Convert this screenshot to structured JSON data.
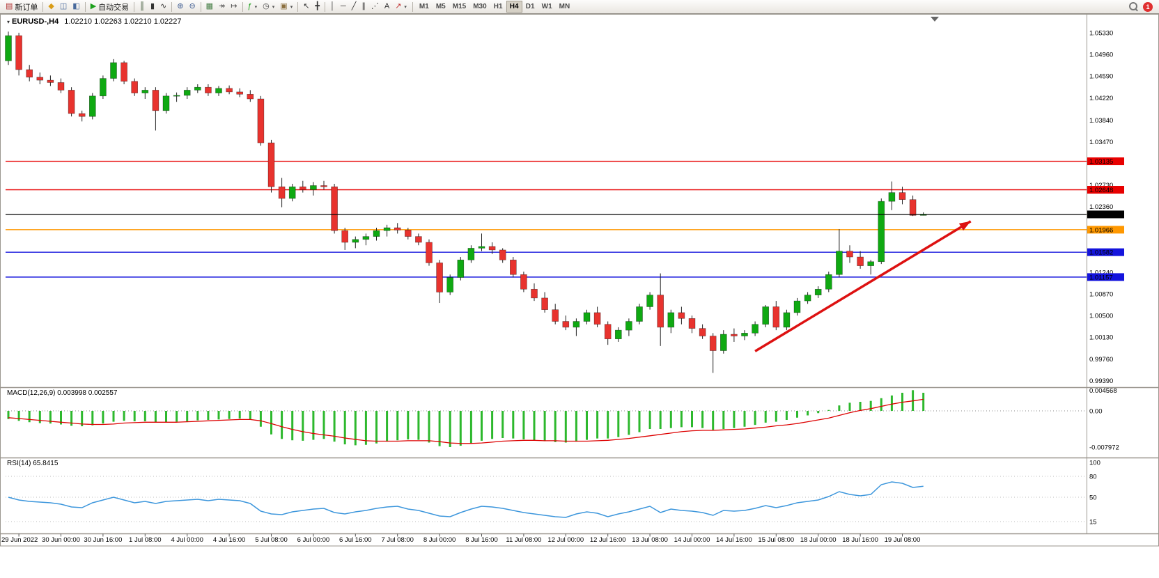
{
  "toolbar": {
    "groups": [
      {
        "items": [
          {
            "name": "new-order",
            "label": "新订单",
            "glyph": "▤",
            "color": "#b03030"
          }
        ]
      },
      {
        "items": [
          {
            "name": "market-watch",
            "glyph": "◆",
            "color": "#d99c16"
          },
          {
            "name": "data-window",
            "glyph": "◫",
            "color": "#47699c"
          },
          {
            "name": "navigator",
            "glyph": "◧",
            "color": "#47699c"
          }
        ]
      },
      {
        "items": [
          {
            "name": "auto-trading",
            "label": "自动交易",
            "glyph": "▶",
            "color": "#1ca01c"
          }
        ]
      },
      {
        "items": [
          {
            "name": "bar-chart-mode",
            "glyph": "║",
            "color": "#35502f"
          },
          {
            "name": "candlestick-mode",
            "glyph": "▮",
            "color": "#333333"
          },
          {
            "name": "line-chart-mode",
            "glyph": "∿",
            "color": "#333333"
          }
        ]
      },
      {
        "items": [
          {
            "name": "zoom-in",
            "glyph": "⊕",
            "color": "#39588f"
          },
          {
            "name": "zoom-out",
            "glyph": "⊖",
            "color": "#39588f"
          }
        ]
      },
      {
        "items": [
          {
            "name": "tile-windows",
            "glyph": "▦",
            "color": "#3f7a3f"
          },
          {
            "name": "auto-scroll",
            "glyph": "↠",
            "color": "#444444"
          },
          {
            "name": "chart-shift",
            "glyph": "↦",
            "color": "#444444"
          }
        ]
      },
      {
        "items": [
          {
            "name": "indicators",
            "glyph": "ƒ",
            "color": "#1ca01c",
            "dropdown": true
          },
          {
            "name": "periods",
            "glyph": "◷",
            "color": "#444444",
            "dropdown": true
          },
          {
            "name": "templates",
            "glyph": "▣",
            "color": "#8b6f3f",
            "dropdown": true
          }
        ]
      },
      {
        "items": [
          {
            "name": "cursor",
            "glyph": "↖",
            "color": "#333333"
          },
          {
            "name": "crosshair",
            "glyph": "╋",
            "color": "#333333"
          }
        ]
      },
      {
        "items": [
          {
            "name": "vertical-line-tool",
            "glyph": "│",
            "color": "#333333"
          },
          {
            "name": "horizontal-line-tool",
            "glyph": "─",
            "color": "#333333"
          },
          {
            "name": "trendline-tool",
            "glyph": "╱",
            "color": "#333333"
          },
          {
            "name": "channel-tool",
            "glyph": "∥",
            "color": "#333333"
          },
          {
            "name": "fibonacci-tool",
            "glyph": "⋰",
            "color": "#333333"
          },
          {
            "name": "text-tool",
            "glyph": "A",
            "color": "#333333"
          },
          {
            "name": "arrows-tool",
            "glyph": "↗",
            "color": "#c03030",
            "dropdown": true
          }
        ]
      }
    ],
    "timeframes": [
      "M1",
      "M5",
      "M15",
      "M30",
      "H1",
      "H4",
      "D1",
      "W1",
      "MN"
    ],
    "active_timeframe": "H4",
    "notification_count": "1"
  },
  "colors": {
    "up": "#0fa912",
    "down": "#e8332e",
    "wick": "#222222",
    "body_border": "rgba(0,0,0,0.5)",
    "macd_bar": "#2db82d",
    "macd_signal": "#dd0000",
    "rsi_line": "#3c96dc",
    "hline_red": "#e80000",
    "hline_orange": "#ff9800",
    "hline_blue": "#1414dd",
    "bid_black": "#000000",
    "arrow": "#dd1111",
    "separator": "#9a968e",
    "level_dotted": "#bbbbbb"
  },
  "chart_data": [
    {
      "type": "candlestick",
      "symbol": "EURUSD-",
      "timeframe": "H4",
      "label": "EURUSD-,H4",
      "ohlc_text": "1.02210 1.02263 1.02210 1.02227",
      "open": 1.0221,
      "high": 1.02263,
      "low": 1.0221,
      "close": 1.02227,
      "ylim": [
        0.993,
        1.0558
      ],
      "y_ticks": [
        1.0533,
        1.0496,
        1.0459,
        1.0422,
        1.0384,
        1.0347,
        1.0273,
        1.0236,
        1.0124,
        1.0087,
        1.005,
        1.0013,
        0.9976,
        0.9939
      ],
      "x_labels": [
        "29 Jun 2022",
        "30 Jun 00:00",
        "30 Jun 16:00",
        "1 Jul 08:00",
        "4 Jul 00:00",
        "4 Jul 16:00",
        "5 Jul 08:00",
        "6 Jul 00:00",
        "6 Jul 16:00",
        "7 Jul 08:00",
        "8 Jul 00:00",
        "8 Jul 16:00",
        "11 Jul 08:00",
        "12 Jul 00:00",
        "12 Jul 16:00",
        "13 Jul 08:00",
        "14 Jul 00:00",
        "14 Jul 16:00",
        "15 Jul 08:00",
        "18 Jul 00:00",
        "18 Jul 16:00",
        "19 Jul 08:00"
      ],
      "x_label_first_index": 1,
      "x_label_step": 4,
      "candles": [
        [
          1.0485,
          1.0535,
          1.0478,
          1.0528
        ],
        [
          1.0528,
          1.0533,
          1.046,
          1.047
        ],
        [
          1.047,
          1.0478,
          1.045,
          1.0457
        ],
        [
          1.0457,
          1.0465,
          1.0445,
          1.0452
        ],
        [
          1.0452,
          1.046,
          1.0442,
          1.0448
        ],
        [
          1.0448,
          1.0455,
          1.043,
          1.0435
        ],
        [
          1.0435,
          1.044,
          1.039,
          1.0395
        ],
        [
          1.0395,
          1.04,
          1.03815,
          1.039
        ],
        [
          1.039,
          1.043,
          1.0385,
          1.0425
        ],
        [
          1.0425,
          1.046,
          1.042,
          1.0455
        ],
        [
          1.0455,
          1.0488,
          1.045,
          1.0482
        ],
        [
          1.0482,
          1.0485,
          1.0445,
          1.045
        ],
        [
          1.045,
          1.0455,
          1.0425,
          1.043
        ],
        [
          1.043,
          1.044,
          1.042,
          1.0435
        ],
        [
          1.0435,
          1.044,
          1.0366,
          1.04
        ],
        [
          1.04,
          1.043,
          1.0395,
          1.0425
        ],
        [
          1.0425,
          1.0431,
          1.0415,
          1.0426
        ],
        [
          1.0426,
          1.044,
          1.042,
          1.0435
        ],
        [
          1.0435,
          1.0445,
          1.043,
          1.044
        ],
        [
          1.044,
          1.0445,
          1.0425,
          1.043
        ],
        [
          1.043,
          1.0442,
          1.0425,
          1.0438
        ],
        [
          1.0438,
          1.0443,
          1.0428,
          1.0432
        ],
        [
          1.0432,
          1.0438,
          1.0423,
          1.0428
        ],
        [
          1.0428,
          1.0435,
          1.0415,
          1.042
        ],
        [
          1.042,
          1.0425,
          1.034,
          1.0345
        ],
        [
          1.0345,
          1.035,
          1.026,
          1.027
        ],
        [
          1.027,
          1.0285,
          1.0235,
          1.025
        ],
        [
          1.025,
          1.0275,
          1.0245,
          1.027
        ],
        [
          1.027,
          1.028,
          1.026,
          1.0265
        ],
        [
          1.0265,
          1.0278,
          1.0255,
          1.0272
        ],
        [
          1.0272,
          1.028,
          1.0265,
          1.027
        ],
        [
          1.027,
          1.0275,
          1.019,
          1.0195
        ],
        [
          1.0195,
          1.02,
          1.0162,
          1.0175
        ],
        [
          1.0175,
          1.0185,
          1.0165,
          1.018
        ],
        [
          1.018,
          1.019,
          1.017,
          1.0185
        ],
        [
          1.0185,
          1.02,
          1.0178,
          1.0195
        ],
        [
          1.0195,
          1.0205,
          1.0185,
          1.02
        ],
        [
          1.02,
          1.0208,
          1.019,
          1.0196
        ],
        [
          1.0196,
          1.02,
          1.018,
          1.0185
        ],
        [
          1.0185,
          1.019,
          1.017,
          1.0175
        ],
        [
          1.0175,
          1.018,
          1.0135,
          1.014
        ],
        [
          1.014,
          1.0145,
          1.00715,
          1.009
        ],
        [
          1.009,
          1.012,
          1.0085,
          1.0115
        ],
        [
          1.0115,
          1.015,
          1.011,
          1.0145
        ],
        [
          1.0145,
          1.017,
          1.014,
          1.0165
        ],
        [
          1.0165,
          1.019,
          1.016,
          1.0168
        ],
        [
          1.0168,
          1.0175,
          1.0155,
          1.0162
        ],
        [
          1.0162,
          1.0165,
          1.014,
          1.0145
        ],
        [
          1.0145,
          1.015,
          1.0115,
          1.012
        ],
        [
          1.012,
          1.0125,
          1.009,
          1.0095
        ],
        [
          1.0095,
          1.0105,
          1.0075,
          1.008
        ],
        [
          1.008,
          1.009,
          1.0055,
          1.006
        ],
        [
          1.006,
          1.007,
          1.0035,
          1.004
        ],
        [
          1.004,
          1.005,
          1.0025,
          1.003
        ],
        [
          1.003,
          1.0045,
          1.0015,
          1.004
        ],
        [
          1.004,
          1.006,
          1.0035,
          1.0055
        ],
        [
          1.0055,
          1.0065,
          1.003,
          1.0035
        ],
        [
          1.0035,
          1.004,
          1.0,
          1.001
        ],
        [
          1.001,
          1.003,
          1.0005,
          1.0025
        ],
        [
          1.0025,
          1.0045,
          1.0015,
          1.004
        ],
        [
          1.004,
          1.007,
          1.0035,
          1.0065
        ],
        [
          1.0065,
          1.009,
          1.006,
          1.0085
        ],
        [
          1.0085,
          1.0122,
          0.9998,
          1.003
        ],
        [
          1.003,
          1.006,
          1.002,
          1.0055
        ],
        [
          1.0055,
          1.0065,
          1.0035,
          1.0045
        ],
        [
          1.0045,
          1.005,
          1.002,
          1.0028
        ],
        [
          1.0028,
          1.0035,
          1.001,
          1.0015
        ],
        [
          1.0015,
          1.002,
          0.9952,
          0.999
        ],
        [
          0.999,
          1.0025,
          0.9985,
          1.0018
        ],
        [
          1.0018,
          1.0028,
          1.0005,
          1.0015
        ],
        [
          1.0015,
          1.0025,
          1.0008,
          1.002
        ],
        [
          1.002,
          1.004,
          1.0015,
          1.0035
        ],
        [
          1.0035,
          1.0068,
          1.003,
          1.0065
        ],
        [
          1.0065,
          1.0075,
          1.0025,
          1.003
        ],
        [
          1.003,
          1.006,
          1.0025,
          1.0055
        ],
        [
          1.0055,
          1.008,
          1.005,
          1.0075
        ],
        [
          1.0075,
          1.009,
          1.007,
          1.0085
        ],
        [
          1.0085,
          1.01,
          1.008,
          1.0095
        ],
        [
          1.0095,
          1.0125,
          1.009,
          1.012
        ],
        [
          1.012,
          1.01975,
          1.0115,
          1.016
        ],
        [
          1.016,
          1.017,
          1.014,
          1.015
        ],
        [
          1.015,
          1.016,
          1.013,
          1.0135
        ],
        [
          1.0135,
          1.0145,
          1.012,
          1.0142
        ],
        [
          1.0142,
          1.025,
          1.0138,
          1.0245
        ],
        [
          1.0245,
          1.0279,
          1.023,
          1.026
        ],
        [
          1.026,
          1.027,
          1.024,
          1.0248
        ],
        [
          1.0248,
          1.0255,
          1.022,
          1.0221
        ],
        [
          1.0221,
          1.02263,
          1.0221,
          1.02227
        ]
      ],
      "hlines": [
        {
          "price": 1.03135,
          "label": "1.03135",
          "color": "#e80000"
        },
        {
          "price": 1.02648,
          "label": "1.02648",
          "color": "#e80000"
        },
        {
          "price": 1.01966,
          "label": "1.01966",
          "color": "#ff9800"
        },
        {
          "price": 1.01582,
          "label": "1.01582",
          "color": "#1414dd"
        },
        {
          "price": 1.01157,
          "label": "1.01157",
          "color": "#1414dd"
        }
      ],
      "bid_line": {
        "price": 1.02227,
        "label": "1.02227",
        "color": "#000000"
      },
      "trend_arrow": {
        "from_t": 71,
        "from_p": 0.9989,
        "to_t": 91.5,
        "to_p": 1.0211,
        "color": "#dd1111"
      }
    },
    {
      "type": "bar",
      "name": "MACD(12,26,9)",
      "label": "MACD(12,26,9) 0.003998 0.002557",
      "current_macd": 0.003998,
      "current_signal": 0.002557,
      "y_ticks": [
        {
          "v": 0.004568,
          "t": "0.004568"
        },
        {
          "v": 0,
          "t": "0.00"
        },
        {
          "v": -0.007972,
          "t": "-0.007972"
        }
      ],
      "values": [
        -0.0018,
        -0.0022,
        -0.0025,
        -0.0027,
        -0.0028,
        -0.003,
        -0.0033,
        -0.0034,
        -0.0032,
        -0.0028,
        -0.0024,
        -0.0022,
        -0.0023,
        -0.0023,
        -0.0026,
        -0.0025,
        -0.0024,
        -0.0023,
        -0.0021,
        -0.002,
        -0.0019,
        -0.0018,
        -0.0017,
        -0.002,
        -0.0035,
        -0.0052,
        -0.0062,
        -0.0065,
        -0.0066,
        -0.0064,
        -0.0062,
        -0.0068,
        -0.0074,
        -0.0076,
        -0.0075,
        -0.0072,
        -0.0068,
        -0.0065,
        -0.0063,
        -0.0064,
        -0.007,
        -0.0078,
        -0.008,
        -0.0077,
        -0.0072,
        -0.0066,
        -0.0062,
        -0.006,
        -0.0061,
        -0.0063,
        -0.0065,
        -0.0067,
        -0.0069,
        -0.007,
        -0.0068,
        -0.0064,
        -0.0061,
        -0.0061,
        -0.0058,
        -0.0053,
        -0.0047,
        -0.004,
        -0.004,
        -0.0038,
        -0.0036,
        -0.0036,
        -0.0038,
        -0.0042,
        -0.004,
        -0.0038,
        -0.0035,
        -0.0031,
        -0.0026,
        -0.0024,
        -0.002,
        -0.0015,
        -0.001,
        -0.0005,
        0.0002,
        0.0012,
        0.0018,
        0.002,
        0.0022,
        0.0028,
        0.0034,
        0.004,
        0.004568,
        0.003998
      ],
      "signal": [
        -0.0015,
        -0.0017,
        -0.0019,
        -0.0021,
        -0.0023,
        -0.0025,
        -0.0027,
        -0.0029,
        -0.003,
        -0.003,
        -0.0029,
        -0.0027,
        -0.0026,
        -0.0025,
        -0.0025,
        -0.0025,
        -0.0025,
        -0.0024,
        -0.0023,
        -0.0022,
        -0.0021,
        -0.002,
        -0.0019,
        -0.0019,
        -0.0022,
        -0.0028,
        -0.0035,
        -0.0041,
        -0.0046,
        -0.005,
        -0.0053,
        -0.0056,
        -0.006,
        -0.0063,
        -0.0066,
        -0.0067,
        -0.0067,
        -0.0067,
        -0.0066,
        -0.0066,
        -0.0066,
        -0.0068,
        -0.0071,
        -0.0072,
        -0.0072,
        -0.0071,
        -0.0069,
        -0.0067,
        -0.0066,
        -0.0065,
        -0.0065,
        -0.0066,
        -0.0066,
        -0.0067,
        -0.0067,
        -0.0067,
        -0.0066,
        -0.0065,
        -0.0063,
        -0.0061,
        -0.0058,
        -0.0055,
        -0.0052,
        -0.0049,
        -0.0046,
        -0.0044,
        -0.0043,
        -0.0043,
        -0.0042,
        -0.0041,
        -0.004,
        -0.0038,
        -0.0036,
        -0.0033,
        -0.0031,
        -0.0028,
        -0.0024,
        -0.002,
        -0.0016,
        -0.001,
        -0.0004,
        0.0001,
        0.0005,
        0.001,
        0.0015,
        0.0019,
        0.0022,
        0.002557
      ]
    },
    {
      "type": "line",
      "name": "RSI(14)",
      "label": "RSI(14) 65.8415",
      "current": 65.8415,
      "y_ticks": [
        100,
        80,
        50,
        15
      ],
      "levels": [
        80,
        50,
        15
      ],
      "values": [
        50,
        46,
        44,
        43,
        42,
        40,
        36,
        35,
        42,
        46,
        50,
        46,
        42,
        44,
        41,
        44,
        45,
        46,
        47,
        45,
        47,
        46,
        45,
        41,
        30,
        26,
        25,
        29,
        31,
        33,
        34,
        28,
        26,
        29,
        31,
        34,
        36,
        37,
        33,
        31,
        27,
        23,
        22,
        28,
        33,
        37,
        36,
        34,
        31,
        28,
        26,
        24,
        22,
        21,
        26,
        29,
        27,
        22,
        26,
        29,
        33,
        37,
        28,
        33,
        31,
        30,
        28,
        24,
        31,
        30,
        31,
        34,
        38,
        35,
        38,
        42,
        44,
        46,
        51,
        58,
        54,
        52,
        54,
        68,
        72,
        70,
        64,
        65.84
      ]
    }
  ]
}
